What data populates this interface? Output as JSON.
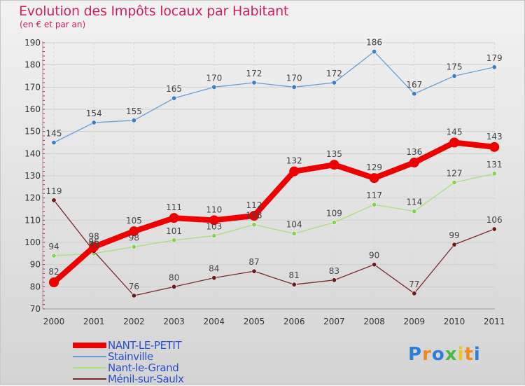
{
  "chart_data": {
    "type": "line",
    "title": "Evolution des Impôts locaux par Habitant",
    "subtitle": "(en € et par an)",
    "xlabel": "",
    "ylabel": "",
    "x": [
      "2000",
      "2001",
      "2002",
      "2003",
      "2004",
      "2005",
      "2006",
      "2007",
      "2008",
      "2009",
      "2010",
      "2011"
    ],
    "ylim": [
      70,
      190
    ],
    "yticks": [
      70,
      80,
      90,
      100,
      110,
      120,
      130,
      140,
      150,
      160,
      170,
      180,
      190
    ],
    "grid": true,
    "series": [
      {
        "name": "Stainville",
        "color": "#6a9fd6",
        "marker": "#3a7fc4",
        "emphasis": false,
        "values": [
          145,
          154,
          155,
          165,
          170,
          172,
          170,
          172,
          186,
          167,
          175,
          179
        ]
      },
      {
        "name": "Nant-le-Grand",
        "color": "#a8e07a",
        "marker": "#86d14f",
        "emphasis": false,
        "values": [
          94,
          95,
          98,
          101,
          103,
          108,
          104,
          109,
          117,
          114,
          127,
          131
        ]
      },
      {
        "name": "Ménil-sur-Saulx",
        "color": "#7a2a2a",
        "marker": "#6a1c1c",
        "emphasis": false,
        "values": [
          119,
          96,
          76,
          80,
          84,
          87,
          81,
          83,
          90,
          77,
          99,
          106
        ]
      },
      {
        "name": "NANT-LE-PETIT",
        "color": "#ee0000",
        "marker": "#ee0000",
        "emphasis": true,
        "values": [
          82,
          98,
          105,
          111,
          110,
          112,
          132,
          135,
          129,
          136,
          145,
          143
        ]
      }
    ],
    "legend": [
      {
        "name": "NANT-LE-PETIT",
        "color": "#ee0000",
        "emphasis": true
      },
      {
        "name": "Stainville",
        "color": "#6a9fd6",
        "emphasis": false
      },
      {
        "name": "Nant-le-Grand",
        "color": "#a8e07a",
        "emphasis": false
      },
      {
        "name": "Ménil-sur-Saulx",
        "color": "#7a2a2a",
        "emphasis": false
      }
    ],
    "legend_position": "bottom-left"
  },
  "logo": {
    "letters": [
      "P",
      "r",
      "o",
      "x",
      "i",
      "t",
      "i"
    ],
    "colors": [
      "#2e7dd7",
      "#f08a1c",
      "#2e7dd7",
      "#4cb844",
      "#e8c81c",
      "#f08a1c",
      "#2e7dd7"
    ]
  }
}
